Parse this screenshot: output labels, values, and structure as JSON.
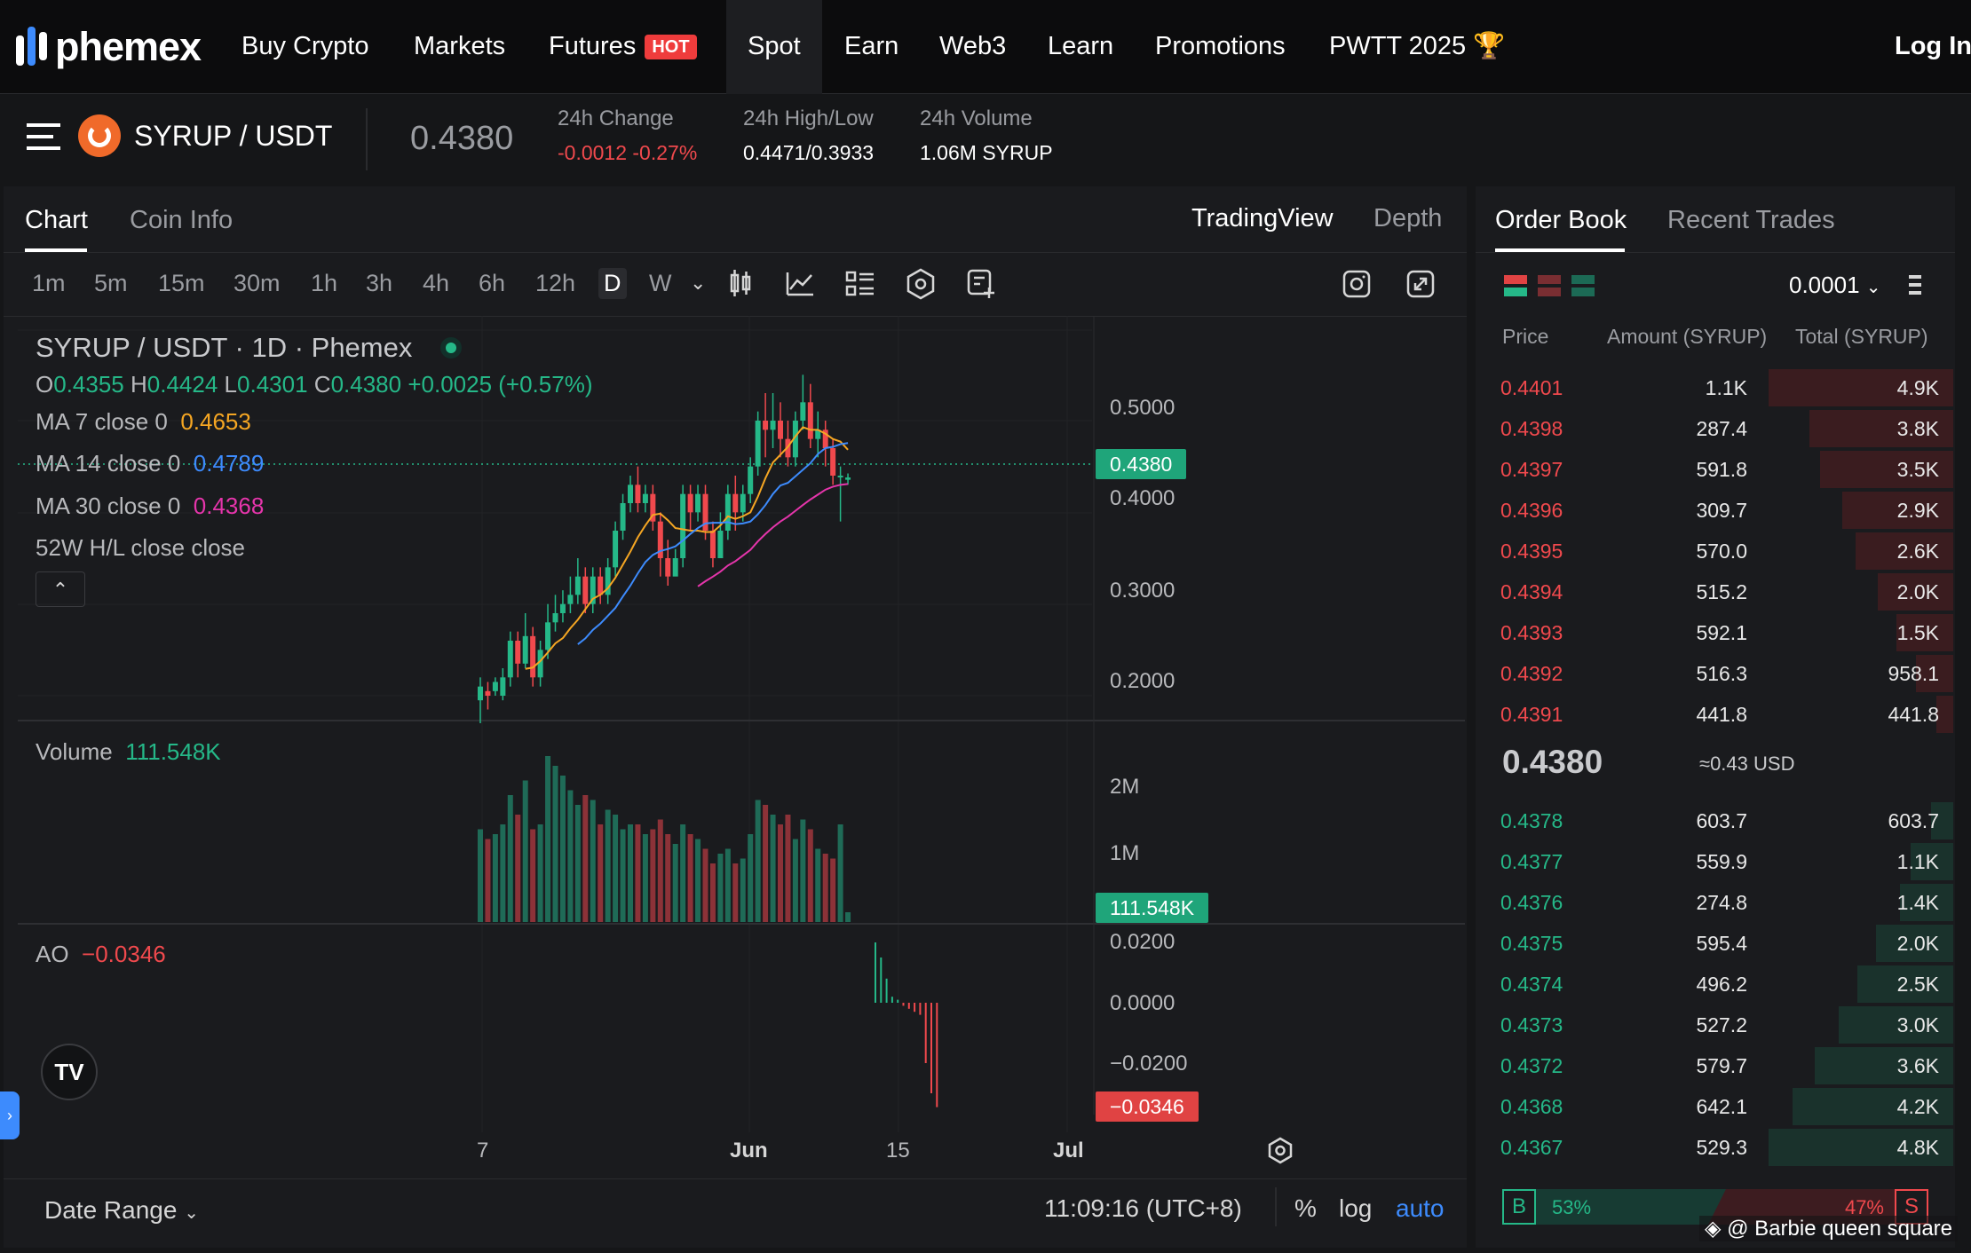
{
  "nav": {
    "logo": "phemex",
    "items": [
      "Buy Crypto",
      "Markets",
      "Futures",
      "Spot",
      "Earn",
      "Web3",
      "Learn",
      "Promotions",
      "PWTT 2025"
    ],
    "hot_badge": "HOT",
    "login": "Log In"
  },
  "ticker": {
    "pair": "SYRUP / USDT",
    "price": "0.4380",
    "change_label": "24h Change",
    "change_value": "-0.0012 -0.27%",
    "highlow_label": "24h High/Low",
    "highlow_value": "0.4471/0.3933",
    "volume_label": "24h Volume",
    "volume_value": "1.06M SYRUP"
  },
  "chart_panel": {
    "tabs": [
      "Chart",
      "Coin Info"
    ],
    "views": [
      "TradingView",
      "Depth"
    ],
    "timeframes": [
      "1m",
      "5m",
      "15m",
      "30m",
      "1h",
      "3h",
      "4h",
      "6h",
      "12h",
      "D",
      "W"
    ],
    "selected_timeframe": "D",
    "title": "SYRUP / USDT · 1D · Phemex",
    "ohlc": {
      "o_label": "O",
      "o": "0.4355",
      "h_label": "H",
      "h": "0.4424",
      "l_label": "L",
      "l": "0.4301",
      "c_label": "C",
      "c": "0.4380",
      "chg": "+0.0025 (+0.57%)"
    },
    "ma7_label": "MA 7 close 0",
    "ma7": "0.4653",
    "ma14_label": "MA 14 close 0",
    "ma14": "0.4789",
    "ma30_label": "MA 30 close 0",
    "ma30": "0.4368",
    "hl52_label": "52W H/L close close",
    "volume_label": "Volume",
    "volume_value": "111.548K",
    "ao_label": "AO",
    "ao_value": "−0.0346",
    "price_ticks": [
      "0.5000",
      "0.4000",
      "0.3000",
      "0.2000"
    ],
    "price_tag": "0.4380",
    "volume_ticks": [
      "2M",
      "1M"
    ],
    "volume_tag": "111.548K",
    "ao_ticks": [
      "0.0200",
      "0.0000",
      "−0.0200"
    ],
    "ao_tag": "−0.0346",
    "x_ticks": [
      "7",
      "Jun",
      "15",
      "Jul"
    ],
    "date_range": "Date Range",
    "clock": "11:09:16 (UTC+8)",
    "percent": "%",
    "log": "log",
    "auto": "auto"
  },
  "orderbook": {
    "tabs": [
      "Order Book",
      "Recent Trades"
    ],
    "precision": "0.0001",
    "headers": [
      "Price",
      "Amount (SYRUP)",
      "Total (SYRUP)"
    ],
    "asks": [
      {
        "price": "0.4401",
        "amount": "1.1K",
        "total": "4.9K",
        "depth": 1.0
      },
      {
        "price": "0.4398",
        "amount": "287.4",
        "total": "3.8K",
        "depth": 0.78
      },
      {
        "price": "0.4397",
        "amount": "591.8",
        "total": "3.5K",
        "depth": 0.72
      },
      {
        "price": "0.4396",
        "amount": "309.7",
        "total": "2.9K",
        "depth": 0.6
      },
      {
        "price": "0.4395",
        "amount": "570.0",
        "total": "2.6K",
        "depth": 0.53
      },
      {
        "price": "0.4394",
        "amount": "515.2",
        "total": "2.0K",
        "depth": 0.41
      },
      {
        "price": "0.4393",
        "amount": "592.1",
        "total": "1.5K",
        "depth": 0.31
      },
      {
        "price": "0.4392",
        "amount": "516.3",
        "total": "958.1",
        "depth": 0.2
      },
      {
        "price": "0.4391",
        "amount": "441.8",
        "total": "441.8",
        "depth": 0.09
      }
    ],
    "mid_price": "0.4380",
    "mid_usd": "≈0.43 USD",
    "bids": [
      {
        "price": "0.4378",
        "amount": "603.7",
        "total": "603.7",
        "depth": 0.12
      },
      {
        "price": "0.4377",
        "amount": "559.9",
        "total": "1.1K",
        "depth": 0.23
      },
      {
        "price": "0.4376",
        "amount": "274.8",
        "total": "1.4K",
        "depth": 0.29
      },
      {
        "price": "0.4375",
        "amount": "595.4",
        "total": "2.0K",
        "depth": 0.42
      },
      {
        "price": "0.4374",
        "amount": "496.2",
        "total": "2.5K",
        "depth": 0.52
      },
      {
        "price": "0.4373",
        "amount": "527.2",
        "total": "3.0K",
        "depth": 0.62
      },
      {
        "price": "0.4372",
        "amount": "579.7",
        "total": "3.6K",
        "depth": 0.75
      },
      {
        "price": "0.4368",
        "amount": "642.1",
        "total": "4.2K",
        "depth": 0.87
      },
      {
        "price": "0.4367",
        "amount": "529.3",
        "total": "4.8K",
        "depth": 1.0
      }
    ],
    "buy_label": "B",
    "buy_pct": "53%",
    "sell_pct": "47%",
    "sell_label": "S",
    "buy_ratio": 0.53
  },
  "watermark": "@ Barbie queen square",
  "colors": {
    "up": "#25b888",
    "down": "#f0494d",
    "ma7": "#f5a623",
    "ma14": "#3d8bfd",
    "ma30": "#e535ab",
    "accent_blue": "#3d8bfd"
  }
}
